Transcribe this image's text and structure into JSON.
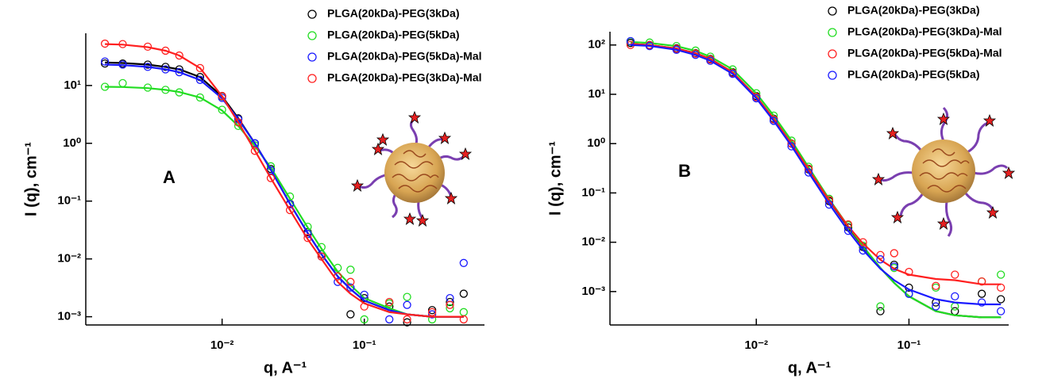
{
  "chart_data": [
    {
      "type": "scatter",
      "xscale": "log",
      "yscale": "log",
      "x_label": "q, A⁻¹",
      "y_label": "I (q), cm⁻¹",
      "annotation": "A",
      "xlim": [
        0.0011,
        0.7
      ],
      "ylim": [
        0.00072,
        80
      ],
      "xticks": [
        {
          "value": 0.01,
          "label": "10⁻²"
        },
        {
          "value": 0.1,
          "label": "10⁻¹"
        }
      ],
      "yticks": [
        {
          "value": 0.001,
          "label": "10⁻³"
        },
        {
          "value": 0.01,
          "label": "10⁻²"
        },
        {
          "value": 0.1,
          "label": "10⁻¹"
        },
        {
          "value": 1,
          "label": "10⁰"
        },
        {
          "value": 10,
          "label": "10¹"
        }
      ],
      "x": [
        0.0015,
        0.002,
        0.003,
        0.004,
        0.005,
        0.007,
        0.01,
        0.013,
        0.017,
        0.022,
        0.03,
        0.04,
        0.05,
        0.065,
        0.08,
        0.1,
        0.15,
        0.2,
        0.3,
        0.4,
        0.5
      ],
      "series": [
        {
          "name": "PLGA(20kDa)-PEG(3kDa)",
          "color": "#000000",
          "values": [
            24,
            24,
            23,
            21,
            19,
            14,
            6.5,
            2.7,
            1.0,
            0.36,
            0.09,
            0.029,
            0.012,
            0.005,
            0.0011,
            0.0021,
            0.0015,
            0.0008,
            0.0013,
            0.0018,
            0.0025
          ],
          "fit": [
            25,
            24.5,
            23,
            21,
            19,
            14,
            6.5,
            2.7,
            1.0,
            0.35,
            0.09,
            0.028,
            0.012,
            0.005,
            0.003,
            0.0019,
            0.0013,
            0.0011,
            0.001,
            0.001,
            0.001
          ]
        },
        {
          "name": "PLGA(20kDa)-PEG(5kDa)",
          "color": "#22dd22",
          "values": [
            9.5,
            11,
            9.2,
            8.4,
            7.6,
            6.2,
            3.8,
            2.0,
            0.92,
            0.4,
            0.12,
            0.036,
            0.016,
            0.007,
            0.0065,
            0.0009,
            0.0017,
            0.0022,
            0.0009,
            0.0014,
            0.0012
          ],
          "fit": [
            9.5,
            9.4,
            9.0,
            8.4,
            7.7,
            6.2,
            3.7,
            2.0,
            0.9,
            0.38,
            0.11,
            0.035,
            0.015,
            0.006,
            0.0035,
            0.0021,
            0.0014,
            0.0011,
            0.001,
            0.001,
            0.001
          ]
        },
        {
          "name": "PLGA(20kDa)-PEG(5kDa)-Mal",
          "color": "#1a1aff",
          "values": [
            26,
            23,
            21,
            19,
            17,
            12.5,
            6.1,
            2.6,
            1.0,
            0.34,
            0.088,
            0.027,
            0.011,
            0.004,
            0.0032,
            0.0024,
            0.0009,
            0.0016,
            0.0011,
            0.0021,
            0.0085
          ],
          "fit": [
            23,
            22.5,
            21,
            19,
            17,
            12.5,
            6,
            2.6,
            1.0,
            0.35,
            0.09,
            0.028,
            0.012,
            0.005,
            0.003,
            0.0019,
            0.0013,
            0.0011,
            0.001,
            0.001,
            0.001
          ]
        },
        {
          "name": "PLGA(20kDa)-PEG(3kDa)-Mal",
          "color": "#ff2020",
          "values": [
            53,
            52,
            47,
            40,
            33,
            20,
            6.6,
            2.3,
            0.74,
            0.25,
            0.07,
            0.023,
            0.011,
            0.005,
            0.004,
            0.0015,
            0.0018,
            0.0009,
            0.0012,
            0.0016,
            0.0009
          ],
          "fit": [
            52,
            51,
            46,
            40,
            33,
            20,
            6.5,
            2.3,
            0.75,
            0.25,
            0.07,
            0.022,
            0.01,
            0.004,
            0.0025,
            0.0017,
            0.0012,
            0.0011,
            0.001,
            0.001,
            0.001
          ]
        }
      ]
    },
    {
      "type": "scatter",
      "xscale": "log",
      "yscale": "log",
      "x_label": "q, A⁻¹",
      "y_label": "I (q), cm⁻¹",
      "annotation": "B",
      "xlim": [
        0.0011,
        0.45
      ],
      "ylim": [
        0.00021,
        186
      ],
      "xticks": [
        {
          "value": 0.01,
          "label": "10⁻²"
        },
        {
          "value": 0.1,
          "label": "10⁻¹"
        }
      ],
      "yticks": [
        {
          "value": 0.001,
          "label": "10⁻³"
        },
        {
          "value": 0.01,
          "label": "10⁻²"
        },
        {
          "value": 0.1,
          "label": "10⁻¹"
        },
        {
          "value": 1,
          "label": "10⁰"
        },
        {
          "value": 10,
          "label": "10¹"
        },
        {
          "value": 100,
          "label": "10²"
        }
      ],
      "x": [
        0.0015,
        0.002,
        0.003,
        0.004,
        0.005,
        0.007,
        0.01,
        0.013,
        0.017,
        0.022,
        0.03,
        0.04,
        0.05,
        0.065,
        0.08,
        0.1,
        0.15,
        0.2,
        0.3,
        0.4
      ],
      "series": [
        {
          "name": "PLGA(20kDa)-PEG(3kDa)",
          "color": "#000000",
          "values": [
            110,
            100,
            86,
            68,
            52,
            28,
            9.2,
            3.2,
            1.0,
            0.3,
            0.068,
            0.02,
            0.008,
            0.0004,
            0.0035,
            0.0012,
            0.0006,
            0.0004,
            0.0009,
            0.0007
          ],
          "fit": [
            105,
            100,
            85,
            68,
            52,
            28,
            9,
            3.2,
            1.0,
            0.3,
            0.07,
            0.02,
            0.008,
            0.003,
            0.0015,
            0.0008,
            0.0004,
            0.00033,
            0.0003,
            0.0003
          ]
        },
        {
          "name": "PLGA(20kDa)-PEG(3kDa)-Mal",
          "color": "#22dd22",
          "values": [
            118,
            112,
            95,
            77,
            58,
            32,
            10.5,
            3.7,
            1.15,
            0.34,
            0.076,
            0.022,
            0.0085,
            0.0005,
            0.003,
            0.0009,
            0.0012,
            0.0005,
            0.0016,
            0.0022
          ],
          "fit": [
            115,
            110,
            95,
            76,
            58,
            32,
            10.5,
            3.7,
            1.15,
            0.33,
            0.075,
            0.021,
            0.0083,
            0.003,
            0.0015,
            0.0008,
            0.0004,
            0.00033,
            0.0003,
            0.0003
          ]
        },
        {
          "name": "PLGA(20kDa)-PEG(5kDa)-Mal",
          "color": "#ff2020",
          "values": [
            100,
            99,
            84,
            67,
            51,
            27,
            8.8,
            3.1,
            1.0,
            0.31,
            0.072,
            0.023,
            0.01,
            0.0055,
            0.006,
            0.0025,
            0.0013,
            0.0022,
            0.0016,
            0.0012
          ],
          "fit": [
            105,
            100,
            85,
            68,
            52,
            28,
            9,
            3.2,
            1.0,
            0.3,
            0.071,
            0.021,
            0.0094,
            0.0044,
            0.0029,
            0.0022,
            0.0018,
            0.0017,
            0.0014,
            0.0014
          ]
        },
        {
          "name": "PLGA(20kDa)-PEG(5kDa)",
          "color": "#1a1aff",
          "values": [
            120,
            95,
            80,
            63,
            48,
            26,
            8.3,
            2.9,
            0.88,
            0.26,
            0.058,
            0.017,
            0.0068,
            0.0045,
            0.0032,
            0.0009,
            0.0005,
            0.0008,
            0.0006,
            0.0004
          ],
          "fit": [
            100,
            96,
            80,
            63,
            48,
            26,
            8.3,
            2.9,
            0.9,
            0.26,
            0.06,
            0.017,
            0.007,
            0.0029,
            0.0017,
            0.0011,
            0.0007,
            0.0006,
            0.00055,
            0.00055
          ]
        }
      ]
    }
  ]
}
